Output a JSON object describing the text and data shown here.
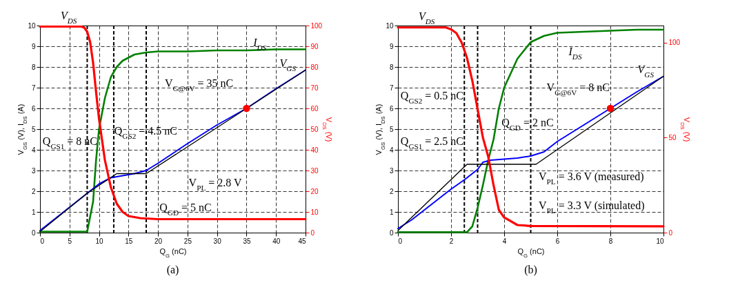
{
  "chart_data": [
    {
      "type": "line",
      "title": "(a)",
      "xlabel": "Q$_{G}$ (nC)",
      "ylabel": "V$_{GS}$ (V), I$_{DS}$ (A)",
      "y2label": "V$_{DS}$ (V)",
      "xlim": [
        0,
        45
      ],
      "xticks": [
        0,
        5,
        10,
        15,
        20,
        25,
        30,
        35,
        40,
        45
      ],
      "ylim": [
        0,
        10
      ],
      "yticks": [
        0,
        1,
        2,
        3,
        4,
        5,
        6,
        7,
        8,
        9,
        10
      ],
      "y2lim": [
        0,
        100
      ],
      "y2ticks": [
        0,
        10,
        20,
        30,
        40,
        50,
        60,
        70,
        80,
        90,
        100
      ],
      "grid": true,
      "marker": "none",
      "line_style": "solid",
      "series": [
        {
          "name": "V$_{DS}$",
          "color": "#ff0000",
          "axis": "y2",
          "x": [
            0,
            7,
            7.5,
            8,
            8.5,
            9,
            9.5,
            10,
            10.5,
            11,
            12,
            13,
            14,
            15,
            17,
            20,
            30,
            45
          ],
          "values": [
            99.5,
            99.5,
            99,
            97,
            92,
            82,
            68,
            55,
            45,
            35,
            22,
            14,
            10,
            8,
            7,
            6.5,
            6.5,
            6.5
          ]
        },
        {
          "name": "I$_{DS}$",
          "color": "#008000",
          "x": [
            0,
            8,
            9,
            9.5,
            10,
            11,
            12,
            13,
            14,
            16,
            18,
            20,
            25,
            30,
            35,
            40,
            45
          ],
          "values": [
            0.05,
            0.05,
            1.5,
            3.5,
            5,
            6.5,
            7.5,
            8,
            8.3,
            8.6,
            8.7,
            8.75,
            8.75,
            8.8,
            8.8,
            8.85,
            8.85
          ]
        },
        {
          "name": "V$_{GS}$",
          "color": "#0000ff",
          "x": [
            0,
            4,
            8,
            10,
            12,
            14,
            16,
            18,
            20,
            25,
            30,
            35,
            40,
            45
          ],
          "values": [
            0.1,
            1,
            1.9,
            2.35,
            2.65,
            2.75,
            2.85,
            3,
            3.35,
            4.3,
            5.2,
            6,
            6.95,
            7.85
          ]
        },
        {
          "color": "#000000",
          "x": [
            0,
            8,
            13,
            18,
            45
          ],
          "values": [
            0.05,
            1.9,
            2.85,
            2.85,
            7.85
          ]
        },
        {
          "type": "scatter",
          "marker": "circle",
          "color": "#ff0000",
          "x": [
            35
          ],
          "values": [
            6
          ]
        }
      ],
      "ref_lines": [
        {
          "axis": "x",
          "value": 8,
          "line_style": "dashed"
        },
        {
          "axis": "x",
          "value": 12.5,
          "line_style": "dashed"
        },
        {
          "axis": "x",
          "value": 18,
          "line_style": "dashed"
        }
      ],
      "annotations": [
        "V$_{G@6V}$ = 35 nC",
        "Q$_{GS2}$ = 4.5 nC",
        "Q$_{GS1}$ = 8 nC",
        "V$_{PL}$ = 2.8 V",
        "Q$_{GD}$ = 5 nC"
      ]
    },
    {
      "type": "line",
      "title": "(b)",
      "xlabel": "Q$_{G}$ (nC)",
      "ylabel": "V$_{GS}$ (V), I$_{DS}$ (A)",
      "y2label": "V$_{DS}$ (V)",
      "xlim": [
        0,
        10
      ],
      "xticks": [
        0,
        2,
        4,
        6,
        8,
        10
      ],
      "ylim": [
        0,
        10
      ],
      "yticks": [
        0,
        1,
        2,
        3,
        4,
        5,
        6,
        7,
        8,
        9,
        10
      ],
      "y2lim": [
        0,
        109
      ],
      "y2ticks": [
        0,
        50,
        100
      ],
      "grid": true,
      "marker": "none",
      "line_style": "solid",
      "series": [
        {
          "name": "V$_{DS}$",
          "color": "#ff0000",
          "axis": "y2",
          "x": [
            0,
            1.8,
            2,
            2.2,
            2.4,
            2.6,
            2.8,
            3,
            3.2,
            3.4,
            3.6,
            3.8,
            4,
            4.5,
            5,
            10
          ],
          "values": [
            108,
            108,
            107,
            105,
            100,
            92,
            80,
            65,
            50,
            40,
            25,
            12,
            8,
            4,
            3.5,
            3.3
          ]
        },
        {
          "name": "I$_{DS}$",
          "color": "#008000",
          "x": [
            0,
            2.6,
            2.8,
            3,
            3.2,
            3.4,
            3.6,
            3.8,
            4,
            4.5,
            5,
            5.5,
            6,
            7,
            8,
            9,
            10
          ],
          "values": [
            0.02,
            0.02,
            0.3,
            1.2,
            2.3,
            3.5,
            4.5,
            6,
            7,
            8.4,
            9.2,
            9.5,
            9.65,
            9.7,
            9.75,
            9.8,
            9.8
          ]
        },
        {
          "name": "V$_{GS}$",
          "color": "#0000ff",
          "x": [
            0,
            0.5,
            1,
            1.5,
            2,
            2.5,
            3,
            3.2,
            3.5,
            4,
            4.5,
            5,
            5.5,
            6,
            7,
            8,
            9,
            10
          ],
          "values": [
            0.2,
            0.6,
            1.1,
            1.6,
            2.1,
            2.55,
            3.05,
            3.4,
            3.5,
            3.55,
            3.6,
            3.7,
            3.9,
            4.4,
            5.2,
            6,
            6.8,
            7.55
          ]
        },
        {
          "color": "#000000",
          "x": [
            0,
            2.6,
            5.2,
            10
          ],
          "values": [
            0.1,
            3.3,
            3.3,
            7.55
          ]
        },
        {
          "type": "scatter",
          "marker": "circle",
          "color": "#ff0000",
          "x": [
            8
          ],
          "values": [
            6
          ]
        }
      ],
      "ref_lines": [
        {
          "axis": "x",
          "value": 2.5,
          "line_style": "dashed"
        },
        {
          "axis": "x",
          "value": 3,
          "line_style": "dashed"
        },
        {
          "axis": "x",
          "value": 5,
          "line_style": "dashed"
        }
      ],
      "annotations": [
        "V$_{G@6V}$ = 8 nC",
        "Q$_{GS2}$ = 0.5 nC",
        "Q$_{GD}$ = 2 nC",
        "Q$_{GS1}$ = 2.5 nC",
        "V$_{PL}$ = 3.6 V (measured)",
        "V$_{PL}$ = 3.3 V (simulated)"
      ]
    }
  ]
}
